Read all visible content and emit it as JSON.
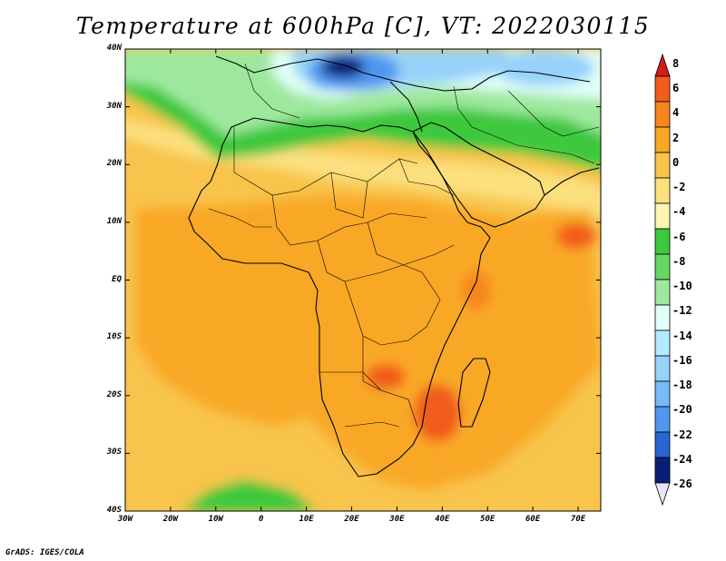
{
  "title": "Temperature at 600hPa [C], VT: 2022030115",
  "credit": "GrADS: IGES/COLA",
  "latitude_labels": [
    "40N",
    "30N",
    "20N",
    "10N",
    "EQ",
    "10S",
    "20S",
    "30S",
    "40S"
  ],
  "longitude_labels": [
    "30W",
    "20W",
    "10W",
    "0",
    "10E",
    "20E",
    "30E",
    "40E",
    "50E",
    "60E",
    "70E"
  ],
  "colorbar": {
    "labels": [
      "8",
      "6",
      "4",
      "2",
      "0",
      "-2",
      "-4",
      "-6",
      "-8",
      "-10",
      "-12",
      "-14",
      "-16",
      "-18",
      "-20",
      "-22",
      "-24",
      "-26"
    ],
    "colors": [
      "#e8261a",
      "#f25c1c",
      "#f7861e",
      "#f9a826",
      "#f8c44c",
      "#fbe07e",
      "#fdf5b0",
      "#3cc83c",
      "#64d764",
      "#9ee89e",
      "#e1fff8",
      "#b4eaff",
      "#96d2fa",
      "#78b9fa",
      "#5096f0",
      "#2864d2",
      "#1e3cb4",
      "#0a1e78"
    ],
    "top_arrow_color": "#d21e12",
    "bottom_arrow_color": "#e6e6fa"
  },
  "field_colors": {
    "warm_core": "#f25c1c",
    "warm": "#f7861e",
    "mild": "#f9a826",
    "light_orange": "#f8c44c",
    "pale_yellow": "#fbe07e",
    "green_light": "#9ee89e",
    "green": "#3cc83c",
    "cyan_pale": "#e1fff8",
    "blue_light": "#96d2fa",
    "blue": "#5096f0",
    "blue_deep": "#1e3cb4",
    "navy": "#0a1e78"
  }
}
